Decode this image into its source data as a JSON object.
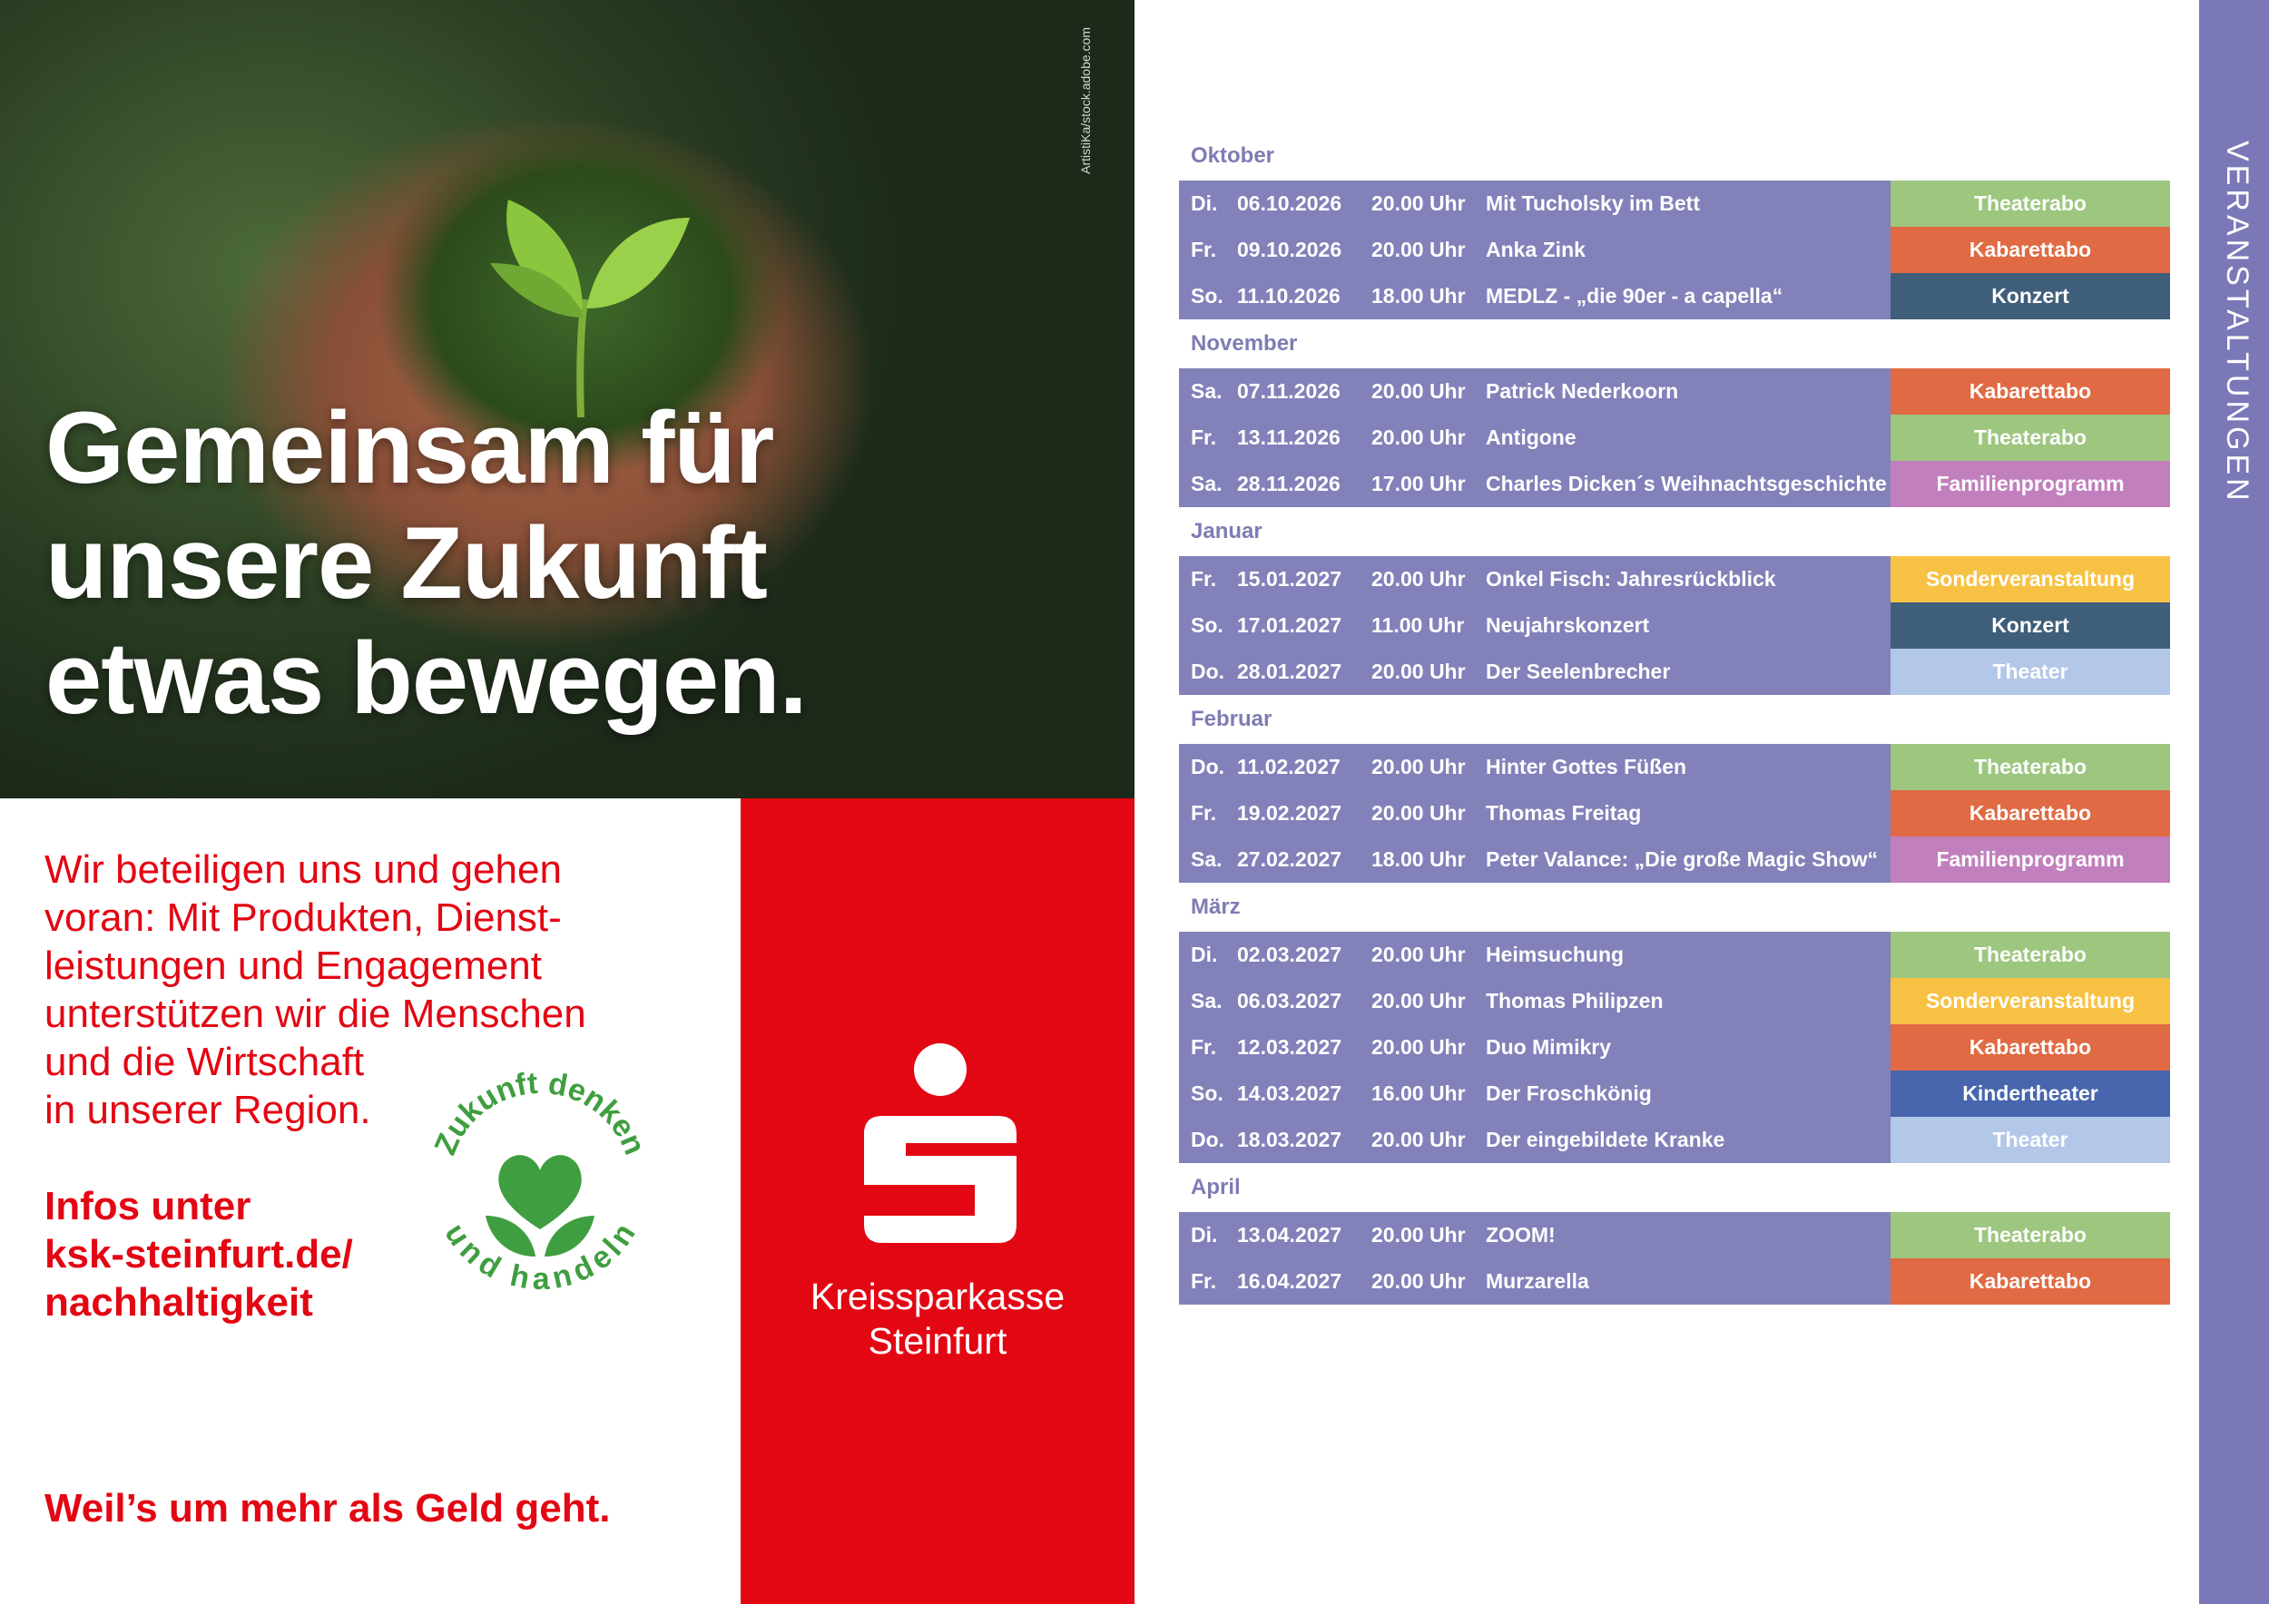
{
  "photo": {
    "credit": "ArtistiKa/stock.adobe.com"
  },
  "headline": [
    "Gemeinsam für",
    "unsere Zukunft",
    "etwas bewegen."
  ],
  "intro": [
    "Wir beteiligen uns und gehen",
    "voran: Mit Produkten, Dienst-",
    "leistungen und Engagement",
    "unterstützen wir die Menschen",
    "und die Wirtschaft",
    "in unserer Region."
  ],
  "infos": [
    "Infos unter",
    "ksk-steinfurt.de/",
    "nachhaltigkeit"
  ],
  "slogan": "Weil’s um mehr als Geld geht.",
  "badge": {
    "top": "Zukunft denken",
    "bottom": "und handeln"
  },
  "bank": {
    "name_line1": "Kreissparkasse",
    "name_line2": "Steinfurt"
  },
  "sidebar": {
    "label": "VERANSTALTUNGEN"
  },
  "colors": {
    "row": "#8381b9",
    "red": "#e30613",
    "Theaterabo": "#9dc67f",
    "Kabarettabo": "#e06a43",
    "Konzert": "#3f5e7a",
    "Familienprogramm": "#c180bd",
    "Sonderveranstaltung": "#f7c244",
    "Theater": "#b3c7e8",
    "Kindertheater": "#4766ad"
  },
  "months": [
    {
      "name": "Oktober",
      "events": [
        {
          "day": "Di.",
          "date": "06.10.2026",
          "time": "20.00 Uhr",
          "title": "Mit Tucholsky im Bett",
          "tag": "Theaterabo"
        },
        {
          "day": "Fr.",
          "date": "09.10.2026",
          "time": "20.00 Uhr",
          "title": "Anka Zink",
          "tag": "Kabarettabo"
        },
        {
          "day": "So.",
          "date": "11.10.2026",
          "time": "18.00 Uhr",
          "title": "MEDLZ - „die 90er - a capella“",
          "tag": "Konzert"
        }
      ]
    },
    {
      "name": "November",
      "events": [
        {
          "day": "Sa.",
          "date": "07.11.2026",
          "time": "20.00 Uhr",
          "title": "Patrick Nederkoorn",
          "tag": "Kabarettabo"
        },
        {
          "day": "Fr.",
          "date": "13.11.2026",
          "time": "20.00 Uhr",
          "title": "Antigone",
          "tag": "Theaterabo"
        },
        {
          "day": "Sa.",
          "date": "28.11.2026",
          "time": "17.00 Uhr",
          "title": "Charles Dicken´s Weihnachtsgeschichte",
          "tag": "Familienprogramm"
        }
      ]
    },
    {
      "name": "Januar",
      "events": [
        {
          "day": "Fr.",
          "date": "15.01.2027",
          "time": "20.00 Uhr",
          "title": "Onkel Fisch: Jahresrückblick",
          "tag": "Sonderveranstaltung"
        },
        {
          "day": "So.",
          "date": "17.01.2027",
          "time": "11.00 Uhr",
          "title": "Neujahrskonzert",
          "tag": "Konzert"
        },
        {
          "day": "Do.",
          "date": "28.01.2027",
          "time": "20.00 Uhr",
          "title": "Der Seelenbrecher",
          "tag": "Theater"
        }
      ]
    },
    {
      "name": "Februar",
      "events": [
        {
          "day": "Do.",
          "date": "11.02.2027",
          "time": "20.00 Uhr",
          "title": "Hinter Gottes Füßen",
          "tag": "Theaterabo"
        },
        {
          "day": "Fr.",
          "date": "19.02.2027",
          "time": "20.00 Uhr",
          "title": "Thomas Freitag",
          "tag": "Kabarettabo"
        },
        {
          "day": "Sa.",
          "date": "27.02.2027",
          "time": "18.00 Uhr",
          "title": "Peter Valance: „Die große Magic Show“",
          "tag": "Familienprogramm"
        }
      ]
    },
    {
      "name": "März",
      "events": [
        {
          "day": "Di.",
          "date": "02.03.2027",
          "time": "20.00 Uhr",
          "title": "Heimsuchung",
          "tag": "Theaterabo"
        },
        {
          "day": "Sa.",
          "date": "06.03.2027",
          "time": "20.00 Uhr",
          "title": "Thomas Philipzen",
          "tag": "Sonderveranstaltung"
        },
        {
          "day": "Fr.",
          "date": "12.03.2027",
          "time": "20.00 Uhr",
          "title": "Duo Mimikry",
          "tag": "Kabarettabo"
        },
        {
          "day": "So.",
          "date": "14.03.2027",
          "time": "16.00 Uhr",
          "title": "Der Froschkönig",
          "tag": "Kindertheater"
        },
        {
          "day": "Do.",
          "date": "18.03.2027",
          "time": "20.00 Uhr",
          "title": "Der eingebildete Kranke",
          "tag": "Theater"
        }
      ]
    },
    {
      "name": "April",
      "events": [
        {
          "day": "Di.",
          "date": "13.04.2027",
          "time": "20.00 Uhr",
          "title": "ZOOM!",
          "tag": "Theaterabo"
        },
        {
          "day": "Fr.",
          "date": "16.04.2027",
          "time": "20.00 Uhr",
          "title": "Murzarella",
          "tag": "Kabarettabo"
        }
      ]
    }
  ]
}
